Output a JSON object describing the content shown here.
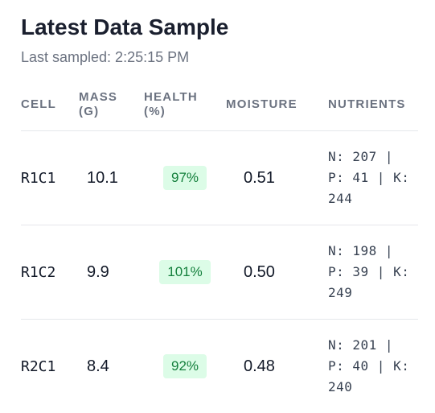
{
  "header": {
    "title": "Latest Data Sample",
    "subtitle": "Last sampled: 2:25:15 PM"
  },
  "table": {
    "columns": [
      "CELL",
      "MASS (G)",
      "HEALTH (%)",
      "MOISTURE",
      "NUTRIENTS"
    ],
    "rows": [
      [
        "R1C1",
        "10.1",
        "97%",
        "0.51",
        "N: 207 | P: 41 | K: 244"
      ],
      [
        "R1C2",
        "9.9",
        "101%",
        "0.50",
        "N: 198 | P: 39 | K: 249"
      ],
      [
        "R2C1",
        "8.4",
        "92%",
        "0.48",
        "N: 201 | P: 40 | K: 240"
      ]
    ]
  }
}
